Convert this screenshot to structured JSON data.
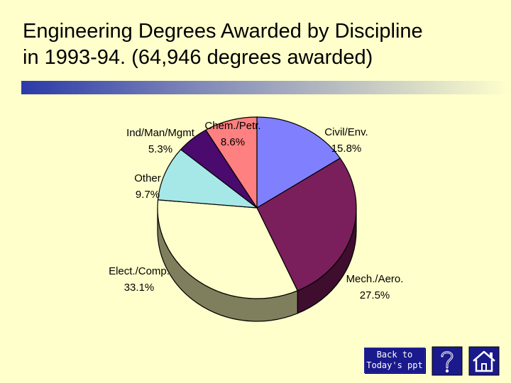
{
  "title": {
    "line1": "Engineering Degrees Awarded by Discipline",
    "line2": "in 1993-94. (64,946 degrees awarded)"
  },
  "colors": {
    "background": "#ffffcc",
    "title_bar_start": "#2b3aa8",
    "title_bar_end": "#ffffcc"
  },
  "chart_data": {
    "type": "pie",
    "style": "3d",
    "slices": [
      {
        "label": "Civil/Env.",
        "value": 15.8,
        "value_text": "15.8%",
        "color": "#8080ff",
        "side_color": "#3b3b8a"
      },
      {
        "label": "Mech./Aero.",
        "value": 27.5,
        "value_text": "27.5%",
        "color": "#7a1f5c",
        "side_color": "#3f0d2e"
      },
      {
        "label": "Elect./Comp.",
        "value": 33.1,
        "value_text": "33.1%",
        "color": "#ffffcc",
        "side_color": "#7f7f5e"
      },
      {
        "label": "Other",
        "value": 9.7,
        "value_text": "9.7%",
        "color": "#a6e8e8",
        "side_color": "#4f7373"
      },
      {
        "label": "Ind/Man/Mgmt",
        "value": 5.3,
        "value_text": "5.3%",
        "color": "#4a0a6e",
        "side_color": "#230536"
      },
      {
        "label": "Chem./Petr.",
        "value": 8.6,
        "value_text": "8.6%",
        "color": "#ff8080",
        "side_color": "#7f3f3f"
      }
    ]
  },
  "nav": {
    "back_line1": "Back to",
    "back_line2": "Today's ppt",
    "help_icon": "question-mark-icon",
    "home_icon": "house-icon"
  }
}
